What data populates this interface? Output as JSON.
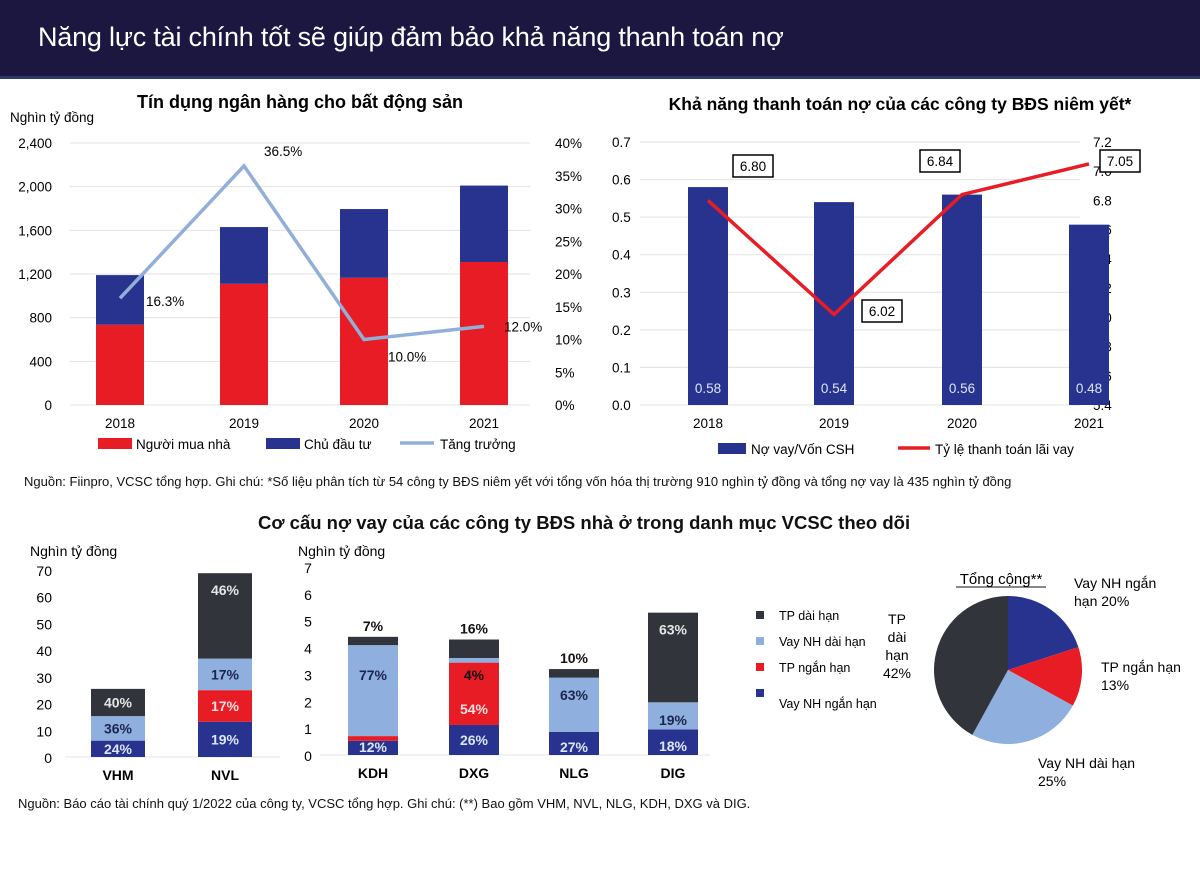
{
  "header": {
    "title": "Năng lực tài chính tốt sẽ giúp đảm bảo khả năng thanh toán nợ"
  },
  "colors": {
    "red": "#e81c24",
    "navy": "#27338f",
    "light_blue": "#8fb0de",
    "dark": "#31353b",
    "growth_line": "#92afd9",
    "header_bg": "#1b1740"
  },
  "notes": {
    "top": "Nguồn: Fiinpro, VCSC tổng hợp. Ghi chú: *Số liệu phân tích từ 54 công ty BĐS niêm yết với tổng vốn hóa thị trường 910 nghìn tỷ đồng và tổng nợ vay là 435 nghìn tỷ đồng",
    "bottom_title": "Cơ cấu nợ vay của các công ty BĐS nhà ở trong danh mục VCSC theo dõi",
    "bottom": "Nguồn: Báo cáo tài chính quý 1/2022 của công ty, VCSC tổng hợp. Ghi chú: (**) Bao gồm VHM, NVL, NLG, KDH, DXG và DIG."
  },
  "chart_data": [
    {
      "id": "credit",
      "type": "bar",
      "stacked": true,
      "title": "Tín dụng ngân hàng cho bất động sản",
      "ylabel": "Nghìn tỷ đồng",
      "categories": [
        "2018",
        "2019",
        "2020",
        "2021"
      ],
      "ylim": [
        0,
        2400
      ],
      "yticks": [
        "0",
        "400",
        "800",
        "1,200",
        "1,600",
        "2,000",
        "2,400"
      ],
      "y2lim": [
        0,
        40
      ],
      "y2ticks": [
        "0%",
        "5%",
        "10%",
        "15%",
        "20%",
        "25%",
        "30%",
        "35%",
        "40%"
      ],
      "series": [
        {
          "name": "Người mua nhà",
          "type": "bar",
          "color": "#e81c24",
          "values": [
            735,
            1110,
            1165,
            1310
          ]
        },
        {
          "name": "Chủ đầu tư",
          "type": "bar",
          "color": "#27338f",
          "values": [
            455,
            520,
            630,
            700
          ]
        },
        {
          "name": "Tăng trưởng",
          "type": "line",
          "axis": "right",
          "color": "#92afd9",
          "values": [
            16.3,
            36.5,
            10.0,
            12.0
          ],
          "labels": [
            "16.3%",
            "36.5%",
            "10.0%",
            "12.0%"
          ]
        }
      ],
      "grid": true,
      "legend": "bottom"
    },
    {
      "id": "solvency",
      "type": "bar",
      "title": "Khả năng thanh toán nợ của các công ty BĐS niêm yết*",
      "categories": [
        "2018",
        "2019",
        "2020",
        "2021"
      ],
      "ylim": [
        0,
        0.7
      ],
      "yticks": [
        "0.0",
        "0.1",
        "0.2",
        "0.3",
        "0.4",
        "0.5",
        "0.6",
        "0.7"
      ],
      "y2lim": [
        5.4,
        7.2
      ],
      "y2ticks": [
        "5.4",
        "5.6",
        "5.8",
        "6.0",
        "6.2",
        "6.4",
        "6.6",
        "6.8",
        "7.0",
        "7.2"
      ],
      "series": [
        {
          "name": "Nợ vay/Vốn CSH",
          "type": "bar",
          "color": "#27338f",
          "values": [
            0.58,
            0.54,
            0.56,
            0.48
          ],
          "labels": [
            "0.58",
            "0.54",
            "0.56",
            "0.48"
          ]
        },
        {
          "name": "Tỷ lệ thanh toán lãi vay",
          "type": "line",
          "axis": "right",
          "color": "#e81c24",
          "values": [
            6.8,
            6.02,
            6.84,
            7.05
          ],
          "labels": [
            "6.80",
            "6.02",
            "6.84",
            "7.05"
          ]
        }
      ],
      "grid": true,
      "legend": "bottom"
    },
    {
      "id": "debt-large",
      "type": "bar",
      "stacked": true,
      "ylabel": "Nghìn tỷ đồng",
      "categories": [
        "VHM",
        "NVL"
      ],
      "ylim": [
        0,
        70
      ],
      "yticks": [
        "0",
        "10",
        "20",
        "30",
        "40",
        "50",
        "60",
        "70"
      ],
      "totals": [
        25.5,
        69.5
      ],
      "series": [
        {
          "name": "Vay NH ngắn hạn",
          "color": "#27338f",
          "shares": [
            24,
            19
          ],
          "labels": [
            "24%",
            "19%"
          ]
        },
        {
          "name": "TP ngắn hạn",
          "color": "#e81c24",
          "shares": [
            0,
            17
          ],
          "labels": [
            "",
            "17%"
          ]
        },
        {
          "name": "Vay NH dài hạn",
          "color": "#8fb0de",
          "shares": [
            36,
            17
          ],
          "labels": [
            "36%",
            "17%"
          ]
        },
        {
          "name": "TP dài hạn",
          "color": "#31353b",
          "shares": [
            40,
            46
          ],
          "labels": [
            "40%",
            "46%"
          ]
        }
      ]
    },
    {
      "id": "debt-small",
      "type": "bar",
      "stacked": true,
      "ylabel": "Nghìn tỷ đồng",
      "categories": [
        "KDH",
        "DXG",
        "NLG",
        "DIG"
      ],
      "ylim": [
        0,
        7
      ],
      "yticks": [
        "0",
        "1",
        "2",
        "3",
        "4",
        "5",
        "6",
        "7"
      ],
      "totals": [
        4.4,
        4.3,
        3.2,
        5.3
      ],
      "series": [
        {
          "name": "Vay NH ngắn hạn",
          "color": "#27338f",
          "shares": [
            12,
            26,
            27,
            18
          ],
          "labels": [
            "12%",
            "26%",
            "27%",
            "18%"
          ]
        },
        {
          "name": "TP ngắn hạn",
          "color": "#e81c24",
          "shares": [
            4,
            54,
            0,
            0
          ],
          "labels": [
            "4%",
            "54%",
            "",
            ""
          ]
        },
        {
          "name": "Vay NH dài hạn",
          "color": "#8fb0de",
          "shares": [
            77,
            4,
            63,
            19
          ],
          "labels": [
            "77%",
            "4%",
            "63%",
            "19%"
          ]
        },
        {
          "name": "TP dài hạn",
          "color": "#31353b",
          "shares": [
            7,
            16,
            10,
            63
          ],
          "labels": [
            "7%",
            "16%",
            "10%",
            "63%"
          ]
        }
      ],
      "legend": [
        "TP dài hạn",
        "Vay NH dài hạn",
        "TP ngắn hạn",
        "Vay NH ngắn hạn"
      ],
      "legend_colors": [
        "#31353b",
        "#8fb0de",
        "#e81c24",
        "#27338f"
      ]
    },
    {
      "id": "debt-total",
      "type": "pie",
      "title": "Tổng cộng**",
      "slices": [
        {
          "name": "Vay NH ngắn hạn",
          "value": 20,
          "color": "#27338f",
          "label": [
            "Vay NH ngắn",
            "hạn 20%"
          ]
        },
        {
          "name": "TP ngắn hạn",
          "value": 13,
          "color": "#e81c24",
          "label": [
            "TP ngắn hạn",
            "13%"
          ]
        },
        {
          "name": "Vay NH dài hạn",
          "value": 25,
          "color": "#8fb0de",
          "label": [
            "Vay NH dài hạn",
            "25%"
          ]
        },
        {
          "name": "TP dài hạn",
          "value": 42,
          "color": "#31353b",
          "label": [
            "TP",
            "dài",
            "hạn",
            "42%"
          ]
        }
      ]
    }
  ]
}
